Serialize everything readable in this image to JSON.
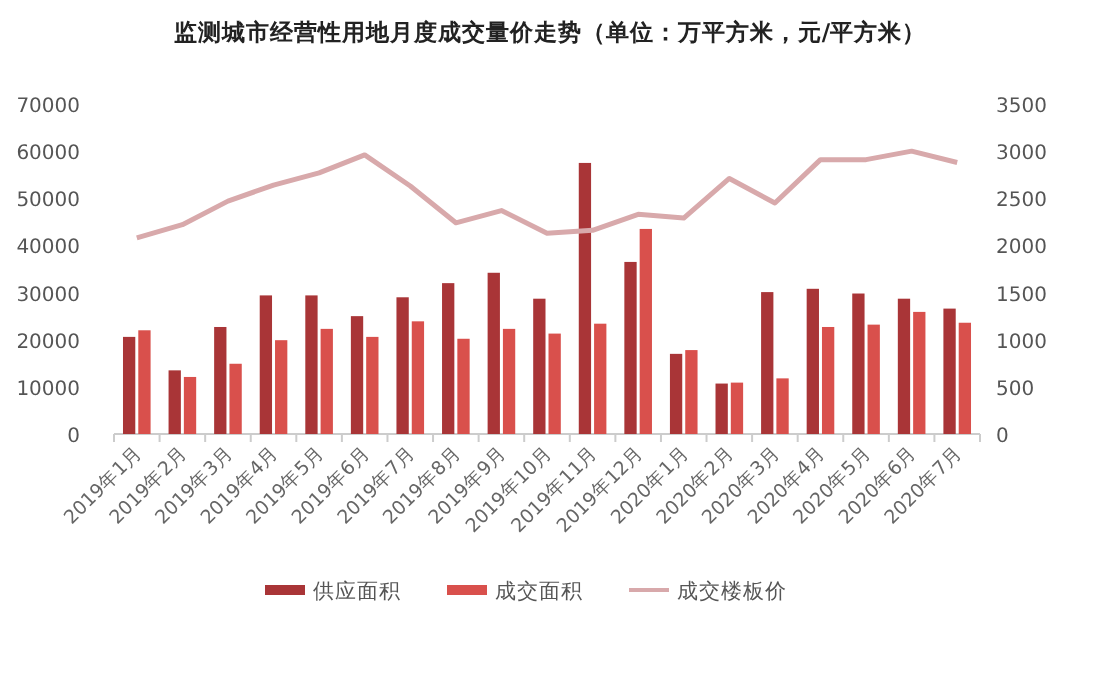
{
  "chart_data": {
    "type": "bar",
    "title": "监测城市经营性用地月度成交量价走势（单位：万平方米，元/平方米）",
    "categories": [
      "2019年1月",
      "2019年2月",
      "2019年3月",
      "2019年4月",
      "2019年5月",
      "2019年6月",
      "2019年7月",
      "2019年8月",
      "2019年9月",
      "2019年10月",
      "2019年11月",
      "2019年12月",
      "2020年1月",
      "2020年2月",
      "2020年3月",
      "2020年4月",
      "2020年5月",
      "2020年6月",
      "2020年7月"
    ],
    "series": [
      {
        "name": "供应面积",
        "color": "#a93537",
        "values": [
          20600,
          13500,
          22700,
          29400,
          29400,
          25000,
          29000,
          32000,
          34200,
          28700,
          57500,
          36500,
          17000,
          10700,
          30100,
          30800,
          29800,
          28700,
          26600
        ]
      },
      {
        "name": "成交面积",
        "color": "#d9504c",
        "values": [
          22000,
          12100,
          14900,
          19900,
          22300,
          20600,
          23900,
          20200,
          22300,
          21300,
          23400,
          43500,
          17800,
          10900,
          11800,
          22700,
          23200,
          25900,
          23600
        ]
      },
      {
        "name": "成交楼板价",
        "color": "#d8a9ab",
        "type": "line",
        "axis": "y2",
        "values": [
          2080,
          2220,
          2470,
          2640,
          2770,
          2960,
          2630,
          2240,
          2370,
          2130,
          2160,
          2330,
          2290,
          2710,
          2450,
          2910,
          2910,
          3000,
          2880
        ]
      }
    ],
    "ylim": [
      0,
      70000
    ],
    "yticks": [
      0,
      10000,
      20000,
      30000,
      40000,
      50000,
      60000,
      70000
    ],
    "y2lim": [
      0,
      3500
    ],
    "y2ticks": [
      0,
      500,
      1000,
      1500,
      2000,
      2500,
      3000,
      3500
    ],
    "legend": "bottom"
  }
}
